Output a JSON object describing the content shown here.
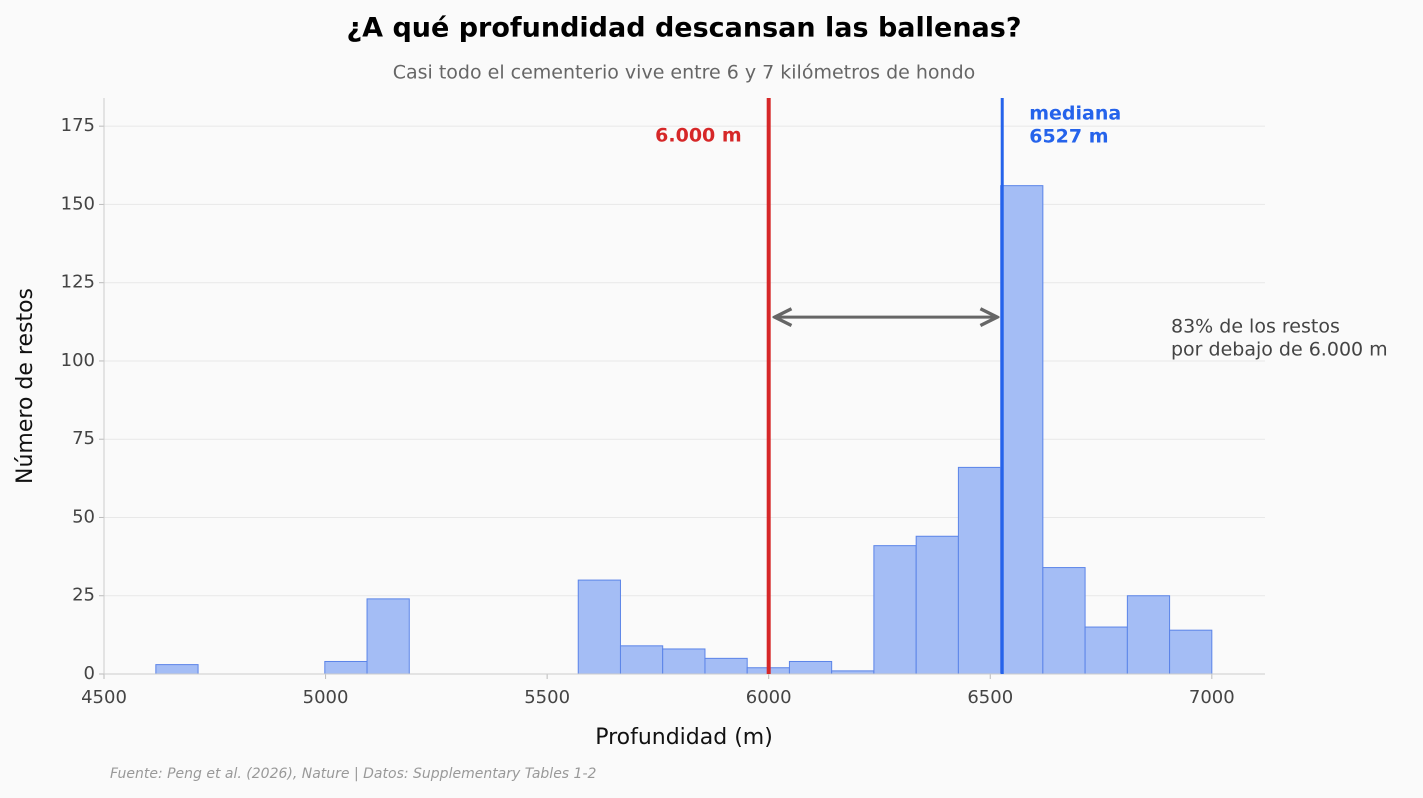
{
  "chart_data": {
    "type": "histogram",
    "title": "¿A qué profundidad descansan las ballenas?",
    "subtitle": "Casi todo el cementerio vive entre 6 y 7 kilómetros de hondo",
    "x_label": "Profundidad (m)",
    "y_label": "Número de restos",
    "source": "Fuente: Peng et al. (2026), Nature | Datos: Supplementary Tables 1-2",
    "bins": [
      4617,
      4712.3,
      4807.6,
      4903.0,
      4998.3,
      5093.6,
      5188.9,
      5284.2,
      5379.6,
      5474.9,
      5570.2,
      5665.5,
      5760.8,
      5856.2,
      5951.5,
      6046.8,
      6142.1,
      6237.4,
      6332.8,
      6428.1,
      6523.4,
      6618.7,
      6714.0,
      6809.4,
      6904.7,
      7000
    ],
    "values": [
      3,
      0,
      0,
      0,
      4,
      24,
      0,
      0,
      0,
      0,
      30,
      9,
      8,
      5,
      2,
      4,
      1,
      41,
      44,
      66,
      156,
      34,
      15,
      25,
      14
    ],
    "color": "#a4bdf5",
    "edge_color": "#5b84e8",
    "xlim": [
      4500,
      7120
    ],
    "ylim": [
      0,
      184
    ],
    "xticks": [
      4500,
      5000,
      5500,
      6000,
      6500,
      7000
    ],
    "yticks": [
      0,
      25,
      50,
      75,
      100,
      125,
      150,
      175
    ],
    "grid": true,
    "vlines": [
      {
        "x": 6000,
        "color": "#d62728",
        "label": [
          "6.000 m"
        ]
      },
      {
        "x": 6527,
        "color": "#2563eb",
        "label": [
          "mediana",
          "6527 m"
        ]
      }
    ],
    "arrow": {
      "x": [
        6000,
        6527
      ],
      "y": 114
    },
    "annotation": [
      "83% de los restos",
      "por debajo de 6.000 m"
    ]
  }
}
